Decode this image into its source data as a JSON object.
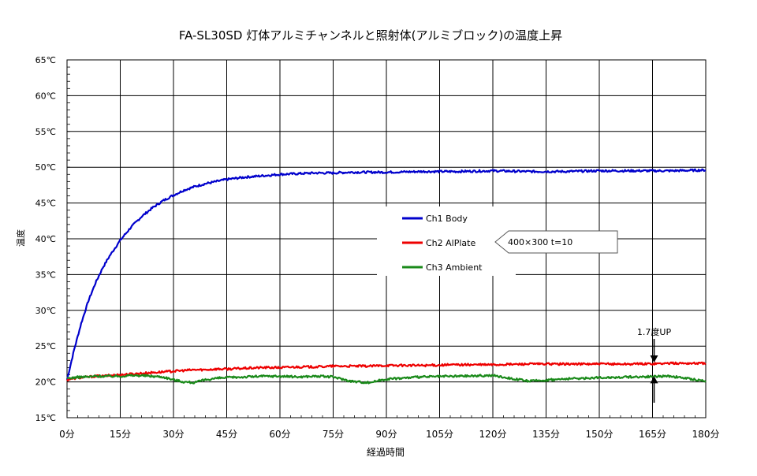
{
  "chart_data": {
    "type": "line",
    "title": "FA-SL30SD 灯体アルミチャンネルと照射体(アルミブロック)の温度上昇",
    "xlabel": "経過時間",
    "ylabel": "温度",
    "xlim": [
      0,
      180
    ],
    "ylim": [
      15,
      65
    ],
    "x_ticks": [
      "0分",
      "15分",
      "30分",
      "45分",
      "60分",
      "75分",
      "90分",
      "105分",
      "120分",
      "135分",
      "150分",
      "165分",
      "180分"
    ],
    "y_ticks": [
      "15℃",
      "20℃",
      "25℃",
      "30℃",
      "35℃",
      "40℃",
      "45℃",
      "50℃",
      "55℃",
      "60℃",
      "65℃"
    ],
    "grid": true,
    "legend_position": "center-right",
    "x": [
      0,
      2,
      4,
      6,
      8,
      10,
      12,
      15,
      18,
      21,
      24,
      27,
      30,
      33,
      36,
      39,
      42,
      45,
      50,
      55,
      60,
      65,
      70,
      75,
      80,
      85,
      90,
      100,
      110,
      120,
      130,
      140,
      150,
      160,
      170,
      180
    ],
    "series": [
      {
        "name": "Ch1  Body",
        "color": "#0000cc",
        "values": [
          20.3,
          24.5,
          28.2,
          31.3,
          33.8,
          35.9,
          37.6,
          39.8,
          41.6,
          43.1,
          44.3,
          45.3,
          46.1,
          46.8,
          47.3,
          47.7,
          48.0,
          48.3,
          48.6,
          48.8,
          49.0,
          49.1,
          49.2,
          49.2,
          49.3,
          49.3,
          49.3,
          49.4,
          49.4,
          49.5,
          49.4,
          49.4,
          49.5,
          49.5,
          49.5,
          49.6
        ]
      },
      {
        "name": "Ch2  AlPlate",
        "color": "#ee0000",
        "values": [
          20.3,
          20.5,
          20.6,
          20.7,
          20.8,
          20.8,
          20.9,
          21.0,
          21.1,
          21.2,
          21.3,
          21.4,
          21.5,
          21.6,
          21.7,
          21.7,
          21.8,
          21.8,
          21.9,
          22.0,
          22.0,
          22.1,
          22.1,
          22.2,
          22.2,
          22.2,
          22.3,
          22.3,
          22.4,
          22.4,
          22.5,
          22.5,
          22.5,
          22.5,
          22.6,
          22.6
        ]
      },
      {
        "name": "Ch3  Ambient",
        "color": "#1a8a1a",
        "values": [
          20.5,
          20.6,
          20.7,
          20.7,
          20.8,
          20.8,
          20.8,
          20.8,
          20.9,
          20.9,
          20.8,
          20.7,
          20.3,
          20.0,
          19.9,
          20.3,
          20.5,
          20.6,
          20.7,
          20.8,
          20.8,
          20.7,
          20.8,
          20.7,
          20.1,
          19.9,
          20.4,
          20.7,
          20.8,
          20.9,
          20.1,
          20.4,
          20.6,
          20.7,
          20.8,
          20.1
        ]
      }
    ],
    "annotations": [
      {
        "text": "400×300  t=10",
        "points_to": "Ch2  AlPlate"
      },
      {
        "text": "1.7度UP",
        "x": 165,
        "y_range": [
          20.9,
          22.6
        ]
      }
    ]
  }
}
